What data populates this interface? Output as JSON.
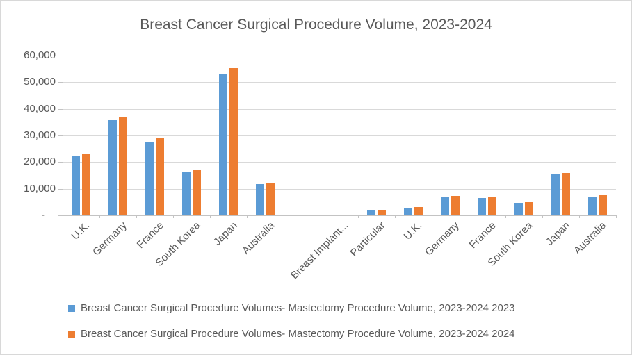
{
  "chart_data": {
    "type": "bar",
    "title": "Breast Cancer Surgical Procedure Volume, 2023-2024",
    "categories": [
      "U.K.",
      "Germany",
      "France",
      "South Korea",
      "Japan",
      "Australia",
      "",
      "Breast Implant...",
      "Particular",
      "U.K.",
      "Germany",
      "France",
      "South Korea",
      "Japan",
      "Australia"
    ],
    "series": [
      {
        "name": "Breast Cancer Surgical Procedure Volumes- Mastectomy Procedure Volume, 2023-2024 2023",
        "color": "#5b9bd5",
        "values": [
          22400,
          35650,
          27400,
          16300,
          53000,
          11800,
          null,
          null,
          2023,
          2900,
          7050,
          6600,
          4750,
          15500,
          7150
        ]
      },
      {
        "name": "Breast Cancer Surgical Procedure Volumes- Mastectomy Procedure Volume, 2023-2024 2024",
        "color": "#ed7d31",
        "values": [
          23300,
          37000,
          28900,
          17000,
          55200,
          12300,
          null,
          null,
          2024,
          3250,
          7300,
          7000,
          5050,
          15800,
          7550
        ]
      }
    ],
    "y_axis": {
      "min": 0,
      "max": 60000,
      "tick_interval": 10000,
      "tick_labels": [
        "-",
        "10,000",
        "20,000",
        "30,000",
        "40,000",
        "50,000",
        "60,000"
      ]
    },
    "x_label_rotation": 45,
    "grid": true,
    "legend_position": "bottom-left"
  },
  "palette": {
    "series_2023": "#5b9bd5",
    "series_2024": "#ed7d31",
    "text": "#595959",
    "gridline": "#d9d9d9",
    "frame_border": "#d8d8d8"
  }
}
